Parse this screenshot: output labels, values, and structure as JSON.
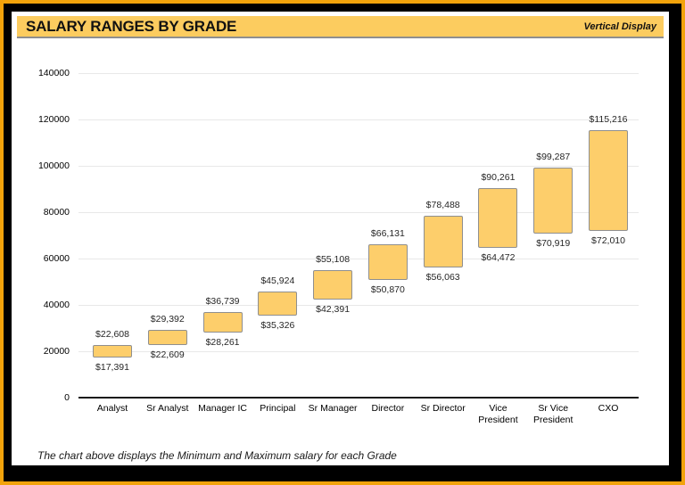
{
  "window": {
    "outer_border_color": "#F2A30B",
    "frame_color": "#000000"
  },
  "header": {
    "title": "SALARY RANGES BY GRADE",
    "subtitle": "Vertical Display",
    "background_color": "#FCCC5F"
  },
  "footer": {
    "caption": "The chart above displays the Minimum and Maximum salary for each Grade"
  },
  "chart_data": {
    "type": "bar",
    "subtype": "floating-range-bars",
    "title": "SALARY RANGES BY GRADE",
    "xlabel": "",
    "ylabel": "",
    "categories": [
      "Analyst",
      "Sr Analyst",
      "Manager IC",
      "Principal",
      "Sr Manager",
      "Director",
      "Sr Director",
      "Vice\nPresident",
      "Sr Vice\nPresident",
      "CXO"
    ],
    "series": [
      {
        "name": "Minimum",
        "values": [
          17391,
          22609,
          28261,
          35326,
          42391,
          50870,
          56063,
          64472,
          70919,
          72010
        ]
      },
      {
        "name": "Maximum",
        "values": [
          22608,
          29392,
          36739,
          45924,
          55108,
          66131,
          78488,
          90261,
          99287,
          115216
        ]
      }
    ],
    "max_labels": [
      "$22,608",
      "$29,392",
      "$36,739",
      "$45,924",
      "$55,108",
      "$66,131",
      "$78,488",
      "$90,261",
      "$99,287",
      "$115,216"
    ],
    "min_labels": [
      "$17,391",
      "$22,609",
      "$28,261",
      "$35,326",
      "$42,391",
      "$50,870",
      "$56,063",
      "$64,472",
      "$70,919",
      "$72,010"
    ],
    "ylim": [
      0,
      140000
    ],
    "yticks": [
      {
        "value": 0,
        "label": "0"
      },
      {
        "value": 20000,
        "label": "20000"
      },
      {
        "value": 40000,
        "label": "40000"
      },
      {
        "value": 60000,
        "label": "60000"
      },
      {
        "value": 80000,
        "label": "80000"
      },
      {
        "value": 100000,
        "label": "100000"
      },
      {
        "value": 120000,
        "label": "120000"
      },
      {
        "value": 140000,
        "label": "140000"
      }
    ],
    "grid": true,
    "legend_position": "none",
    "bar_color": "#FDCE6B",
    "bar_border_color": "#8F8F8F",
    "gridline_color": "#E8E8E8",
    "axis_color": "#1A1A1A"
  }
}
